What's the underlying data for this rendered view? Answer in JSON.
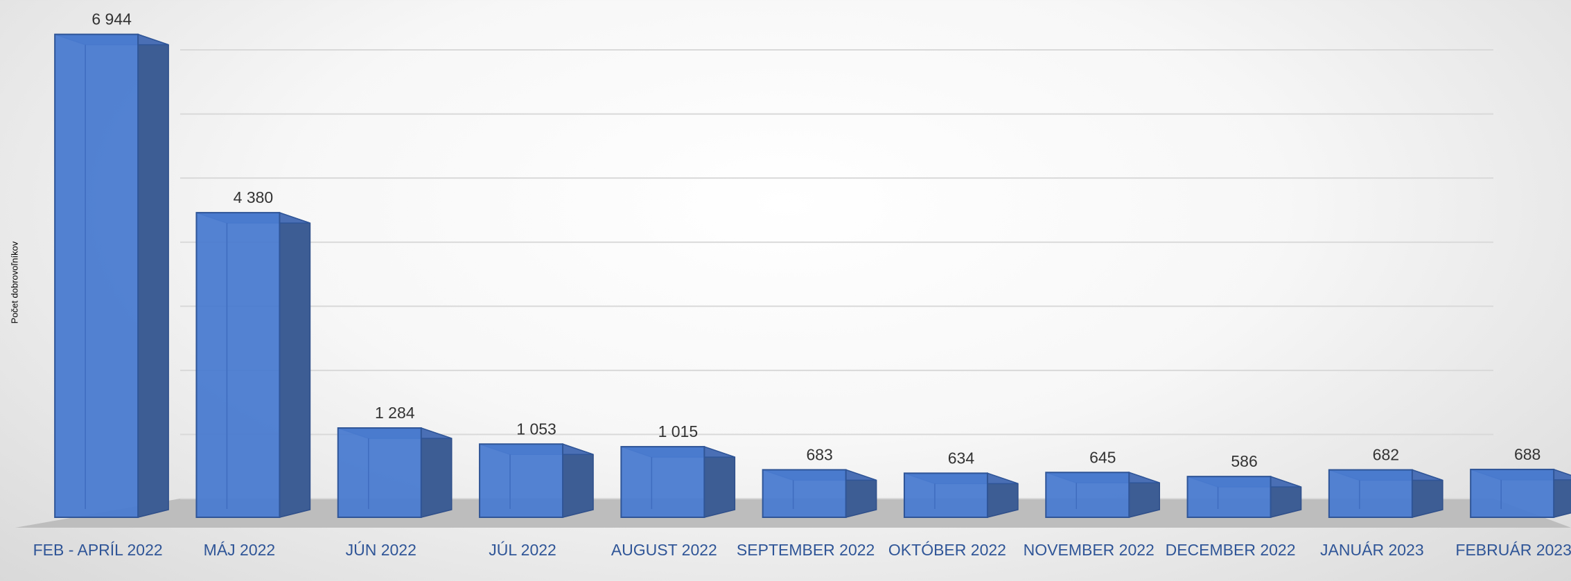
{
  "chart_data": {
    "type": "bar3d",
    "y_label": "Počet dobrovoľníkov",
    "categories": [
      "FEB - APRÍL 2022",
      "MÁJ 2022",
      "JÚN 2022",
      "JÚL 2022",
      "AUGUST 2022",
      "SEPTEMBER 2022",
      "OKTÓBER 2022",
      "NOVEMBER 2022",
      "DECEMBER 2022",
      "JANUÁR 2023",
      "FEBRUÁR 2023"
    ],
    "values": [
      6944,
      4380,
      1284,
      1053,
      1015,
      683,
      634,
      645,
      586,
      682,
      688
    ],
    "value_labels": [
      "6 944",
      "4 380",
      "1 284",
      "1 053",
      "1 015",
      "683",
      "634",
      "645",
      "586",
      "682",
      "688"
    ],
    "color": "#4a7bd0",
    "ylim": [
      0,
      7000
    ],
    "yticks": [
      0,
      1000,
      2000,
      3000,
      4000,
      5000,
      6000,
      7000
    ],
    "grid": true
  }
}
